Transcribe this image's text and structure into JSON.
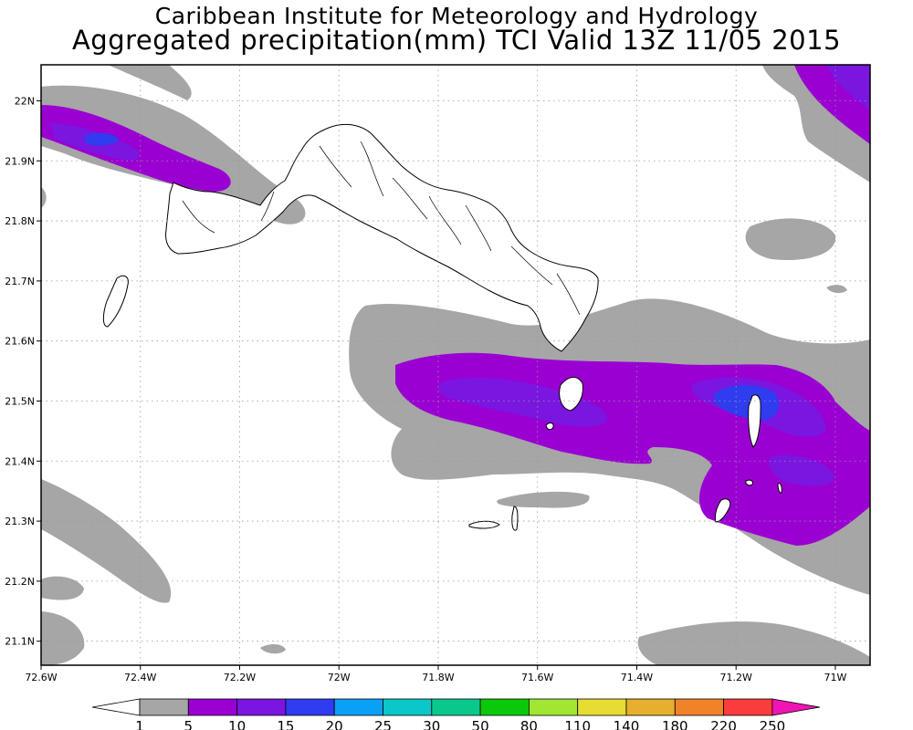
{
  "title": {
    "line1": "Caribbean Institute for Meteorology and Hydrology",
    "line2": "Aggregated precipitation(mm) TCI Valid 13Z 11/05 2015"
  },
  "map": {
    "lon_range": [
      -72.6,
      -70.93
    ],
    "lat_range": [
      21.06,
      22.06
    ],
    "lon_ticks": [
      {
        "value": -72.6,
        "label": "72.6W"
      },
      {
        "value": -72.4,
        "label": "72.4W"
      },
      {
        "value": -72.2,
        "label": "72.2W"
      },
      {
        "value": -72.0,
        "label": "72W"
      },
      {
        "value": -71.8,
        "label": "71.8W"
      },
      {
        "value": -71.6,
        "label": "71.6W"
      },
      {
        "value": -71.4,
        "label": "71.4W"
      },
      {
        "value": -71.2,
        "label": "71.2W"
      },
      {
        "value": -71.0,
        "label": "71W"
      }
    ],
    "lat_ticks": [
      {
        "value": 22.0,
        "label": "22N"
      },
      {
        "value": 21.9,
        "label": "21.9N"
      },
      {
        "value": 21.8,
        "label": "21.8N"
      },
      {
        "value": 21.7,
        "label": "21.7N"
      },
      {
        "value": 21.6,
        "label": "21.6N"
      },
      {
        "value": 21.5,
        "label": "21.5N"
      },
      {
        "value": 21.4,
        "label": "21.4N"
      },
      {
        "value": 21.3,
        "label": "21.3N"
      },
      {
        "value": 21.2,
        "label": "21.2N"
      },
      {
        "value": 21.1,
        "label": "21.1N"
      }
    ],
    "grid": true
  },
  "legend": {
    "labels": [
      "1",
      "5",
      "10",
      "15",
      "20",
      "25",
      "30",
      "50",
      "80",
      "110",
      "140",
      "180",
      "220",
      "250"
    ],
    "colors": [
      "#a6a6a6",
      "#9a00d2",
      "#7a16e0",
      "#2f3cf0",
      "#0aa0f5",
      "#0ac8c8",
      "#0ac88c",
      "#0ac80a",
      "#a0e632",
      "#e6dc32",
      "#e6af2d",
      "#f08228",
      "#fa3c3c",
      "#f014b4"
    ],
    "low_color": "#ffffff"
  },
  "colors": {
    "level1": "#a6a6a6",
    "level5": "#9a00d2",
    "level10": "#7a16e0",
    "level15": "#2f3cf0"
  }
}
